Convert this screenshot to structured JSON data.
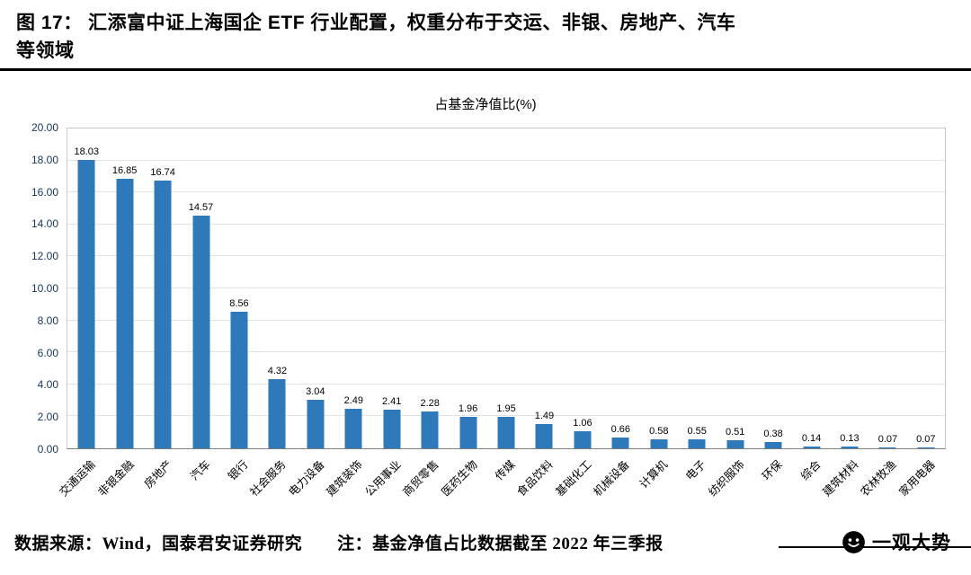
{
  "header": {
    "title_line1": "图 17：  汇添富中证上海国企 ETF 行业配置，权重分布于交运、非银、房地产、汽车",
    "title_line2": "等领域"
  },
  "chart_data": {
    "type": "bar",
    "title": "占基金净值比(%)",
    "categories": [
      "交通运输",
      "非银金融",
      "房地产",
      "汽车",
      "银行",
      "社会服务",
      "电力设备",
      "建筑装饰",
      "公用事业",
      "商贸零售",
      "医药生物",
      "传媒",
      "食品饮料",
      "基础化工",
      "机械设备",
      "计算机",
      "电子",
      "纺织服饰",
      "环保",
      "综合",
      "建筑材料",
      "农林牧渔",
      "家用电器"
    ],
    "values": [
      18.03,
      16.85,
      16.74,
      14.57,
      8.56,
      4.32,
      3.04,
      2.49,
      2.41,
      2.28,
      1.96,
      1.95,
      1.49,
      1.06,
      0.66,
      0.58,
      0.55,
      0.51,
      0.38,
      0.14,
      0.13,
      0.07,
      0.07
    ],
    "ylim": [
      0,
      20
    ],
    "yticks": [
      "0.00",
      "2.00",
      "4.00",
      "6.00",
      "8.00",
      "10.00",
      "12.00",
      "14.00",
      "16.00",
      "18.00",
      "20.00"
    ],
    "bar_color": "#2e79b9",
    "grid": true,
    "legend": "none",
    "xlabel": "",
    "ylabel": ""
  },
  "footer": {
    "source": "数据来源：Wind，国泰君安证券研究　　注：基金净值占比数据截至 2022 年三季报",
    "logo_text": "一观大势"
  }
}
